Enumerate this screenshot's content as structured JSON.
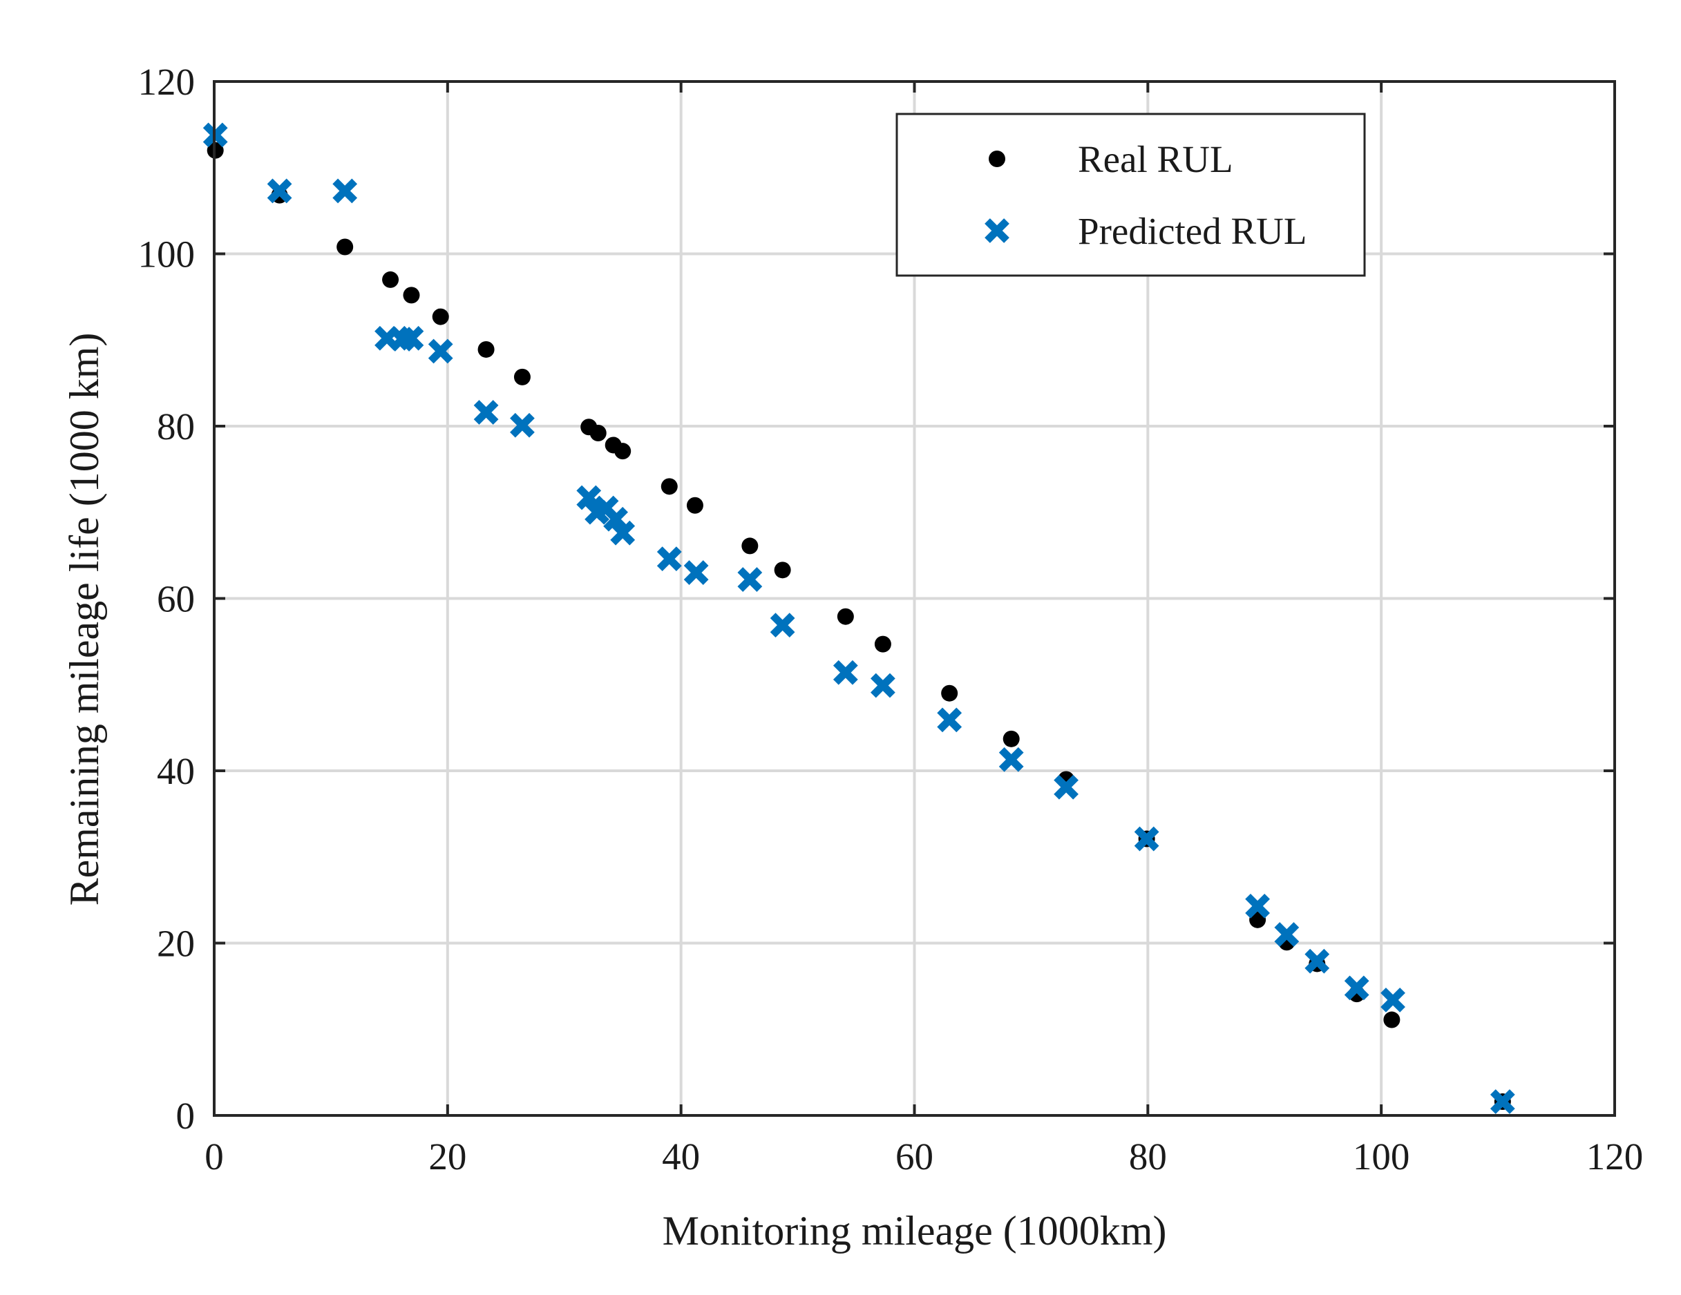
{
  "chart_data": {
    "type": "scatter",
    "title": "",
    "xlabel": "Monitoring mileage (1000km)",
    "ylabel": "Remaining mileage life (1000 km)",
    "xlim": [
      0,
      120
    ],
    "ylim": [
      0,
      120
    ],
    "xticks": [
      0,
      20,
      40,
      60,
      80,
      100,
      120
    ],
    "yticks": [
      0,
      20,
      40,
      60,
      80,
      100,
      120
    ],
    "grid": true,
    "legend_position": "top-right",
    "colors": {
      "real": "#000000",
      "predicted": "#0072BD",
      "grid": "#d9d9d9",
      "axis": "#262626"
    },
    "series": [
      {
        "name": "Real RUL",
        "marker": "dot",
        "points": [
          [
            0.1,
            112.0
          ],
          [
            5.6,
            106.8
          ],
          [
            11.2,
            100.8
          ],
          [
            15.1,
            97.0
          ],
          [
            16.9,
            95.2
          ],
          [
            19.4,
            92.7
          ],
          [
            23.3,
            88.9
          ],
          [
            26.4,
            85.7
          ],
          [
            32.1,
            79.9
          ],
          [
            32.9,
            79.2
          ],
          [
            34.2,
            77.8
          ],
          [
            35.0,
            77.1
          ],
          [
            39.0,
            73.0
          ],
          [
            41.2,
            70.8
          ],
          [
            45.9,
            66.1
          ],
          [
            48.7,
            63.3
          ],
          [
            54.1,
            57.9
          ],
          [
            57.3,
            54.7
          ],
          [
            63.0,
            49.0
          ],
          [
            68.3,
            43.7
          ],
          [
            73.0,
            39.0
          ],
          [
            79.9,
            32.1
          ],
          [
            89.4,
            22.7
          ],
          [
            91.9,
            20.1
          ],
          [
            94.5,
            17.6
          ],
          [
            97.9,
            14.1
          ],
          [
            100.9,
            11.1
          ],
          [
            110.4,
            1.6
          ]
        ]
      },
      {
        "name": "Predicted RUL",
        "marker": "x",
        "points": [
          [
            0.1,
            113.8
          ],
          [
            5.6,
            107.3
          ],
          [
            11.2,
            107.3
          ],
          [
            14.8,
            90.2
          ],
          [
            16.1,
            90.1
          ],
          [
            16.9,
            90.2
          ],
          [
            19.4,
            88.7
          ],
          [
            23.3,
            81.6
          ],
          [
            26.4,
            80.1
          ],
          [
            32.1,
            71.7
          ],
          [
            32.8,
            70.0
          ],
          [
            33.6,
            70.5
          ],
          [
            34.4,
            69.2
          ],
          [
            35.0,
            67.6
          ],
          [
            39.0,
            64.6
          ],
          [
            41.3,
            63.0
          ],
          [
            45.9,
            62.2
          ],
          [
            48.7,
            56.9
          ],
          [
            54.1,
            51.4
          ],
          [
            57.3,
            49.9
          ],
          [
            63.0,
            45.9
          ],
          [
            68.3,
            41.3
          ],
          [
            73.0,
            38.1
          ],
          [
            79.9,
            32.1
          ],
          [
            89.4,
            24.3
          ],
          [
            91.9,
            21.0
          ],
          [
            94.5,
            17.9
          ],
          [
            97.9,
            14.8
          ],
          [
            101.0,
            13.4
          ],
          [
            110.4,
            1.6
          ]
        ]
      }
    ]
  }
}
